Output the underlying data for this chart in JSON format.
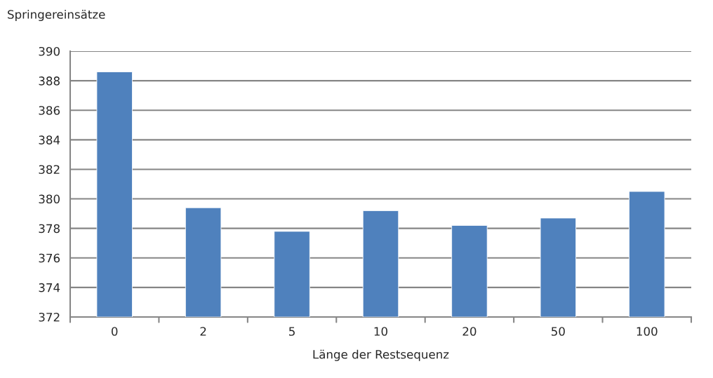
{
  "chart_data": {
    "type": "bar",
    "ylabel": "Springereinsätze",
    "xlabel": "Länge der Restsequenz",
    "categories": [
      "0",
      "2",
      "5",
      "10",
      "20",
      "50",
      "100"
    ],
    "values": [
      388.6,
      379.4,
      377.8,
      379.2,
      378.2,
      378.7,
      380.5
    ],
    "color": "#4f81bd",
    "ylim": [
      372,
      390
    ],
    "yticks": [
      372,
      374,
      376,
      378,
      380,
      382,
      384,
      386,
      388,
      390
    ],
    "grid": "y"
  }
}
